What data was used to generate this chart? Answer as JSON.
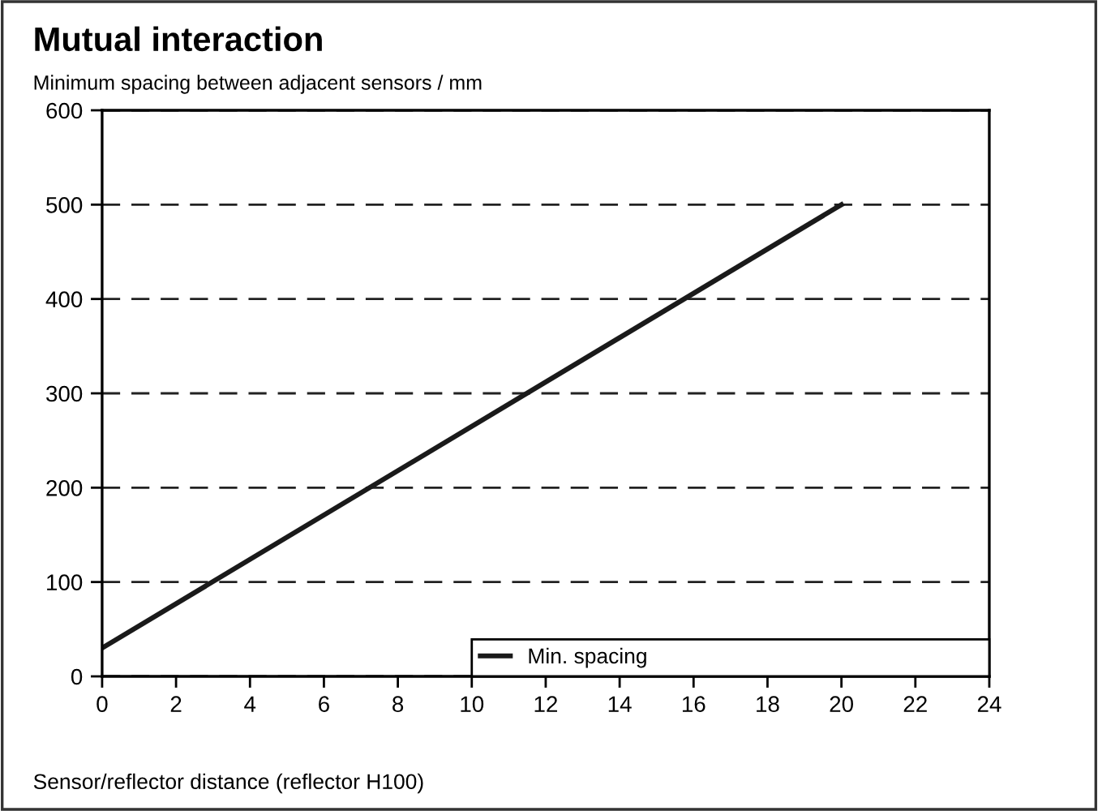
{
  "chart_data": {
    "type": "line",
    "title": "Mutual interaction",
    "ylabel": "Minimum spacing between adjacent sensors / mm",
    "xlabel": "Sensor/reflector distance (reflector H100)",
    "series": [
      {
        "name": "Min. spacing",
        "color": "#1a1a1a",
        "x": [
          0,
          20
        ],
        "values": [
          30,
          500
        ]
      }
    ],
    "xlim": [
      0,
      24
    ],
    "xticks": [
      0,
      2,
      4,
      6,
      8,
      10,
      12,
      14,
      16,
      18,
      20,
      22,
      24
    ],
    "ylim": [
      0,
      600
    ],
    "yticks": [
      0,
      100,
      200,
      300,
      400,
      500,
      600
    ],
    "grid": "y",
    "legend": "bottom right",
    "marker": "none",
    "line_style": "solid"
  }
}
